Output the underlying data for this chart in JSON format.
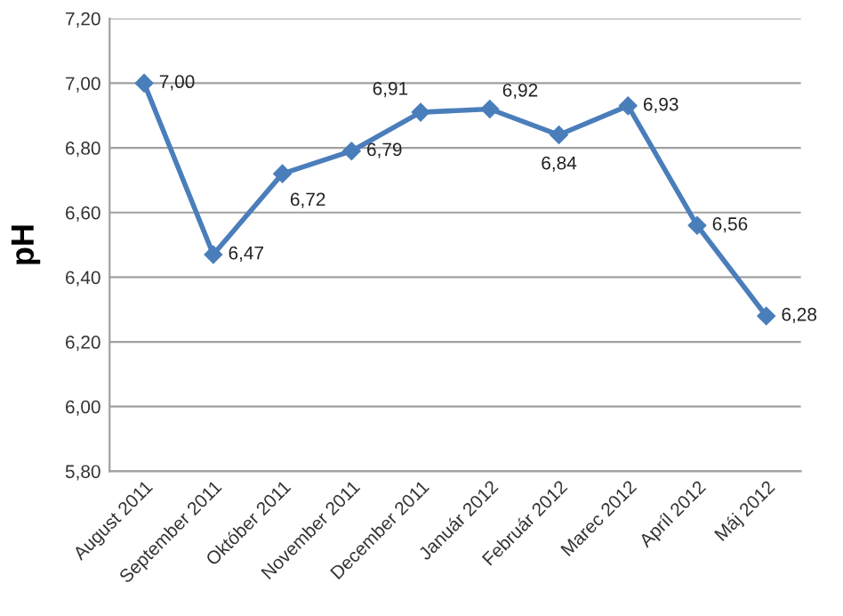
{
  "chart_data": {
    "type": "line",
    "ylabel": "pH",
    "categories": [
      "August 2011",
      "September 2011",
      "Október 2011",
      "November 2011",
      "December 2011",
      "Január 2012",
      "Február 2012",
      "Marec 2012",
      "Apríl 2012",
      "Máj 2012"
    ],
    "series": [
      {
        "color": "#4a7ebb",
        "values": [
          7.0,
          6.47,
          6.72,
          6.79,
          6.91,
          6.92,
          6.84,
          6.93,
          6.56,
          6.28
        ],
        "value_labels": [
          "7,00",
          "6,47",
          "6,72",
          "6,79",
          "6,91",
          "6,92",
          "6,84",
          "6,93",
          "6,56",
          "6,28"
        ]
      }
    ],
    "ylim": [
      5.8,
      7.2
    ],
    "yticks": [
      {
        "value": 5.8,
        "label": "5,80"
      },
      {
        "value": 6.0,
        "label": "6,00"
      },
      {
        "value": 6.2,
        "label": "6,20"
      },
      {
        "value": 6.4,
        "label": "6,40"
      },
      {
        "value": 6.6,
        "label": "6,60"
      },
      {
        "value": 6.8,
        "label": "6,80"
      },
      {
        "value": 7.0,
        "label": "7,00"
      },
      {
        "value": 7.2,
        "label": "7,20"
      }
    ],
    "grid": "y",
    "marker": "diamond",
    "line_style": "solid"
  }
}
